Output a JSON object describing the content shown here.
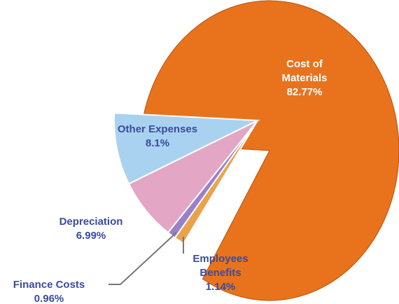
{
  "chart_data": {
    "type": "pie",
    "categories": [
      "Cost of Materials",
      "Employees Benefits",
      "Finance Costs",
      "Depreciation",
      "Other Expenses"
    ],
    "values": [
      82.77,
      1.14,
      0.96,
      6.99,
      8.1
    ],
    "value_labels": [
      "82.77%",
      "1.14%",
      "0.96%",
      "6.99%",
      "8.1%"
    ],
    "colors": [
      "#e8731c",
      "#e9a34a",
      "#9b7fc9",
      "#e3a6c4",
      "#a9d2f0"
    ]
  }
}
